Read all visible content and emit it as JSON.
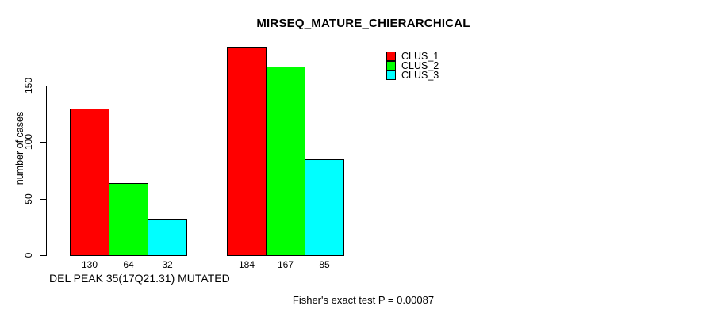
{
  "chart_data": {
    "type": "bar",
    "title": "MIRSEQ_MATURE_CHIERARCHICAL",
    "xlabel": "DEL PEAK 35(17Q21.31) MUTATED",
    "ylabel": "number of cases",
    "yticks": [
      0,
      50,
      100,
      150
    ],
    "ylim": [
      0,
      192
    ],
    "grid": false,
    "categories": [
      "",
      ""
    ],
    "series": [
      {
        "name": "CLUS_1",
        "color": "#FF0000",
        "values": [
          130,
          184
        ]
      },
      {
        "name": "CLUS_2",
        "color": "#00FF00",
        "values": [
          64,
          167
        ]
      },
      {
        "name": "CLUS_3",
        "color": "#00FFFF",
        "values": [
          32,
          85
        ]
      }
    ],
    "bar_value_labels": [
      [
        130,
        64,
        32
      ],
      [
        184,
        167,
        85
      ]
    ],
    "legend": {
      "position": "top-right",
      "entries": [
        "CLUS_1",
        "CLUS_2",
        "CLUS_3"
      ]
    },
    "annotation": "Fisher's exact test P = 0.00087",
    "axis_color": "#000000",
    "background_color": "#FFFFFF"
  }
}
